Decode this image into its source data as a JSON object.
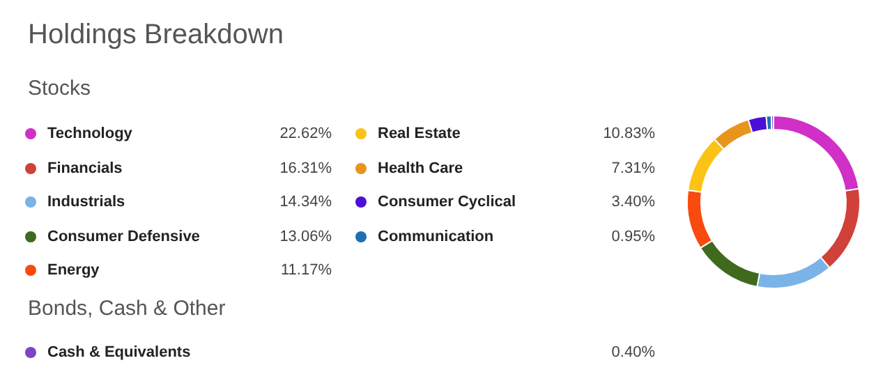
{
  "chart_data": {
    "type": "donut",
    "title": "Holdings Breakdown",
    "annotations": [
      "Stocks",
      "Bonds, Cash & Other"
    ],
    "categories": [
      "Technology",
      "Financials",
      "Industrials",
      "Consumer Defensive",
      "Energy",
      "Real Estate",
      "Health Care",
      "Consumer Cyclical",
      "Communication",
      "Cash & Equivalents"
    ],
    "values": [
      22.62,
      16.31,
      14.34,
      13.06,
      11.17,
      10.83,
      7.31,
      3.4,
      0.95,
      0.4
    ],
    "value_labels": [
      "22.62%",
      "16.31%",
      "14.34%",
      "13.06%",
      "11.17%",
      "10.83%",
      "7.31%",
      "3.40%",
      "0.95%",
      "0.40%"
    ],
    "colors": [
      "#d02fc8",
      "#d0413a",
      "#7ab3e8",
      "#3f6a1d",
      "#f94a0f",
      "#fbc316",
      "#e8951c",
      "#4b0fd8",
      "#1f6fb5",
      "#7b45c8"
    ],
    "legend": "left"
  }
}
